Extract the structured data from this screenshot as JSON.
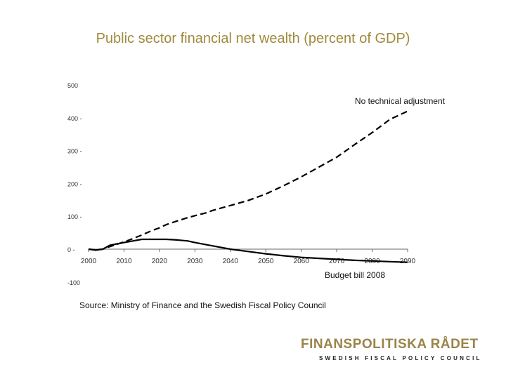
{
  "page": {
    "title": "Public sector financial net wealth (percent of GDP)",
    "source": "Source: Ministry of Finance and the Swedish Fiscal Policy Council",
    "logo": {
      "main": "FINANSPOLITISKA RÅDET",
      "sub": "SWEDISH FISCAL POLICY COUNCIL"
    }
  },
  "colors": {
    "title": "#a08a3c",
    "logo": "#9a8448",
    "series": "#000000",
    "axis": "#666666"
  },
  "chart_data": {
    "type": "line",
    "title": "",
    "xlabel": "",
    "ylabel": "",
    "xlim": [
      2000,
      2090
    ],
    "ylim": [
      -100,
      500
    ],
    "xticks": [
      "2000",
      "2010",
      "2020",
      "2030",
      "2040",
      "2050",
      "2060",
      "2070",
      "2080",
      "2090"
    ],
    "yticks": [
      "500",
      "400",
      "300",
      "200",
      "100",
      "0",
      "-100"
    ],
    "grid": false,
    "legend": "none",
    "series": [
      {
        "name": "No technical adjustment",
        "style": "dashed",
        "x": [
          2000,
          2002,
          2004,
          2006,
          2008,
          2010,
          2012,
          2015,
          2018,
          2020,
          2022,
          2025,
          2028,
          2030,
          2033,
          2035,
          2040,
          2045,
          2050,
          2055,
          2060,
          2065,
          2070,
          2075,
          2080,
          2085,
          2090
        ],
        "y": [
          0,
          -2,
          0,
          8,
          15,
          22,
          30,
          43,
          57,
          65,
          75,
          86,
          96,
          102,
          110,
          118,
          133,
          148,
          168,
          193,
          220,
          250,
          280,
          318,
          355,
          395,
          420
        ]
      },
      {
        "name": "Budget bill 2008",
        "style": "solid",
        "x": [
          2000,
          2002,
          2004,
          2006,
          2008,
          2010,
          2012,
          2015,
          2018,
          2020,
          2022,
          2025,
          2028,
          2030,
          2033,
          2035,
          2040,
          2045,
          2050,
          2055,
          2060,
          2065,
          2070,
          2075,
          2080,
          2085,
          2090
        ],
        "y": [
          0,
          -3,
          0,
          12,
          16,
          20,
          24,
          30,
          30,
          30,
          30,
          28,
          25,
          20,
          14,
          10,
          0,
          -7,
          -14,
          -20,
          -25,
          -28,
          -31,
          -34,
          -36,
          -38,
          -40
        ]
      }
    ]
  }
}
